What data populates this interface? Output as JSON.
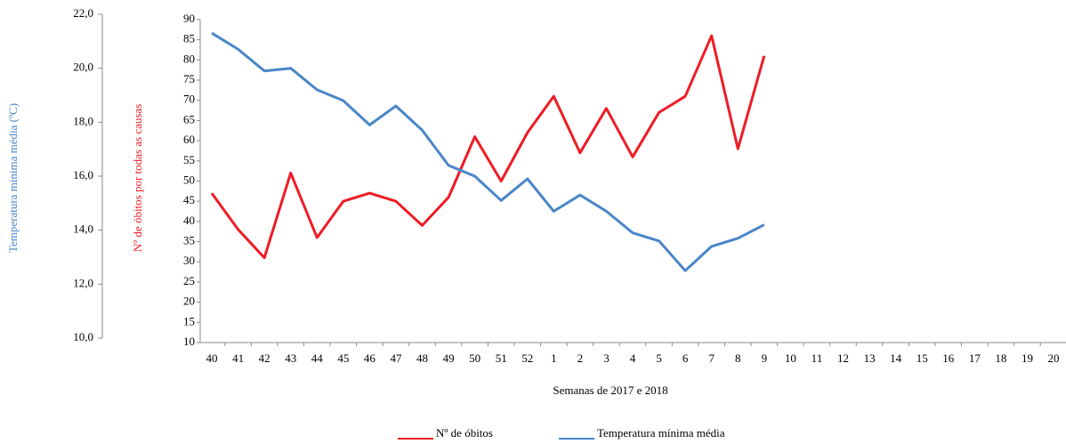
{
  "chart_data": {
    "type": "line",
    "x_label": "Semanas de 2017 e 2018",
    "y_label": "Nº de óbitos por todas as causas",
    "y2_label": "Temperatura mínima média (ºC)",
    "categories": [
      "40",
      "41",
      "42",
      "43",
      "44",
      "45",
      "46",
      "47",
      "48",
      "49",
      "50",
      "51",
      "52",
      "1",
      "2",
      "3",
      "4",
      "5",
      "6",
      "7",
      "8",
      "9",
      "10",
      "11",
      "12",
      "13",
      "14",
      "15",
      "16",
      "17",
      "18",
      "19",
      "20"
    ],
    "series": [
      {
        "name": "Nº de óbitos",
        "color": "#ee1c25",
        "axis": "y",
        "values": [
          47,
          38,
          31,
          52,
          36,
          45,
          47,
          45,
          39,
          46,
          61,
          50,
          62,
          71,
          57,
          68,
          56,
          67,
          71,
          86,
          58,
          81,
          null,
          null,
          null,
          null,
          null,
          null,
          null,
          null,
          null,
          null,
          null
        ]
      },
      {
        "name": "Temperatura mínima média",
        "color": "#4a86c8",
        "axis": "y2",
        "values": [
          21.3,
          20.7,
          19.9,
          20.0,
          19.2,
          18.8,
          17.9,
          18.6,
          17.7,
          16.4,
          16.0,
          15.1,
          15.9,
          14.7,
          15.3,
          14.7,
          13.9,
          13.6,
          12.5,
          13.4,
          13.7,
          14.2,
          null,
          null,
          null,
          null,
          null,
          null,
          null,
          null,
          null,
          null,
          null
        ]
      }
    ],
    "ylim": [
      10,
      90
    ],
    "yticks": [
      10,
      15,
      20,
      25,
      30,
      35,
      40,
      45,
      50,
      55,
      60,
      65,
      70,
      75,
      80,
      85,
      90
    ],
    "y2lim": [
      10,
      22
    ],
    "y2ticks": [
      {
        "value": 10,
        "label": "10,0"
      },
      {
        "value": 12,
        "label": "12,0"
      },
      {
        "value": 14,
        "label": "14,0"
      },
      {
        "value": 16,
        "label": "16,0"
      },
      {
        "value": 18,
        "label": "18,0"
      },
      {
        "value": 20,
        "label": "20,0"
      },
      {
        "value": 22,
        "label": "22,0"
      }
    ],
    "grid": false,
    "legend": "bottom"
  }
}
